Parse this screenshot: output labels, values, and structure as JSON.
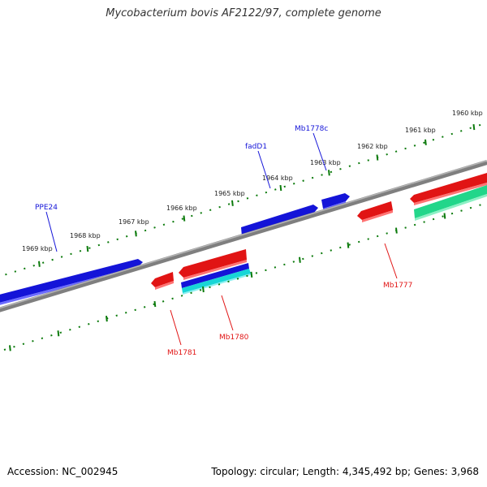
{
  "title": "Mycobacterium bovis AF2122/97, complete genome",
  "footer": {
    "accession": "Accession: NC_002945",
    "summary": "Topology: circular; Length: 4,345,492 bp; Genes: 3,968"
  },
  "colors": {
    "backbone": "#7f7f7f",
    "tick": "#0b7a0b",
    "forward_gene": "#1414d8",
    "reverse_gene": "#e11414",
    "cyan_feature": "#18d6d6",
    "teal_feature": "#22d68a"
  },
  "scale": {
    "ticks": [
      "1969 kbp",
      "1968 kbp",
      "1967 kbp",
      "1966 kbp",
      "1965 kbp",
      "1964 kbp",
      "1963 kbp",
      "1962 kbp",
      "1961 kbp",
      "1960 kbp"
    ]
  },
  "genes": {
    "PPE24": "PPE24",
    "fadD1": "fadD1",
    "Mb1778c": "Mb1778c",
    "Mb1777": "Mb1777",
    "Mb1780": "Mb1780",
    "Mb1781": "Mb1781"
  }
}
